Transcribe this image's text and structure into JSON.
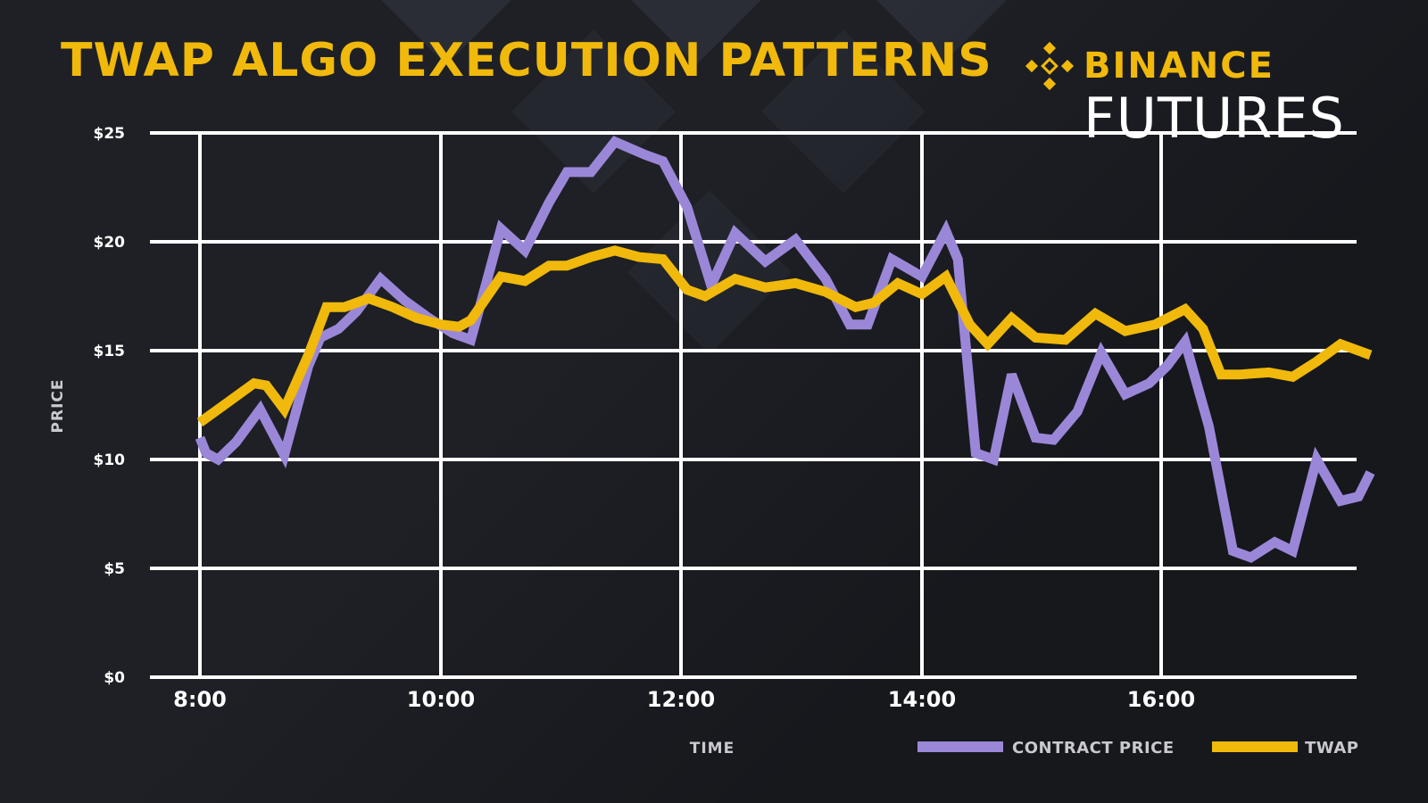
{
  "header": {
    "title": "TWAP ALGO EXECUTION PATTERNS",
    "brand": "BINANCE",
    "product": "FUTURES"
  },
  "logo_icon": "binance-diamond-icon",
  "colors": {
    "background": "#1e2026",
    "accent": "#f0b90b",
    "contract_price": "#9b87d8",
    "twap": "#f0b90b",
    "grid": "#ffffff"
  },
  "chart_data": {
    "type": "line",
    "title": "TWAP ALGO EXECUTION PATTERNS",
    "xlabel": "TIME",
    "ylabel": "PRICE",
    "ylim": [
      0,
      25
    ],
    "xlim": [
      8.0,
      17.75
    ],
    "grid": true,
    "legend_position": "bottom-right",
    "y_ticks": [
      {
        "value": 0,
        "label": "$0"
      },
      {
        "value": 5,
        "label": "$5"
      },
      {
        "value": 10,
        "label": "$10"
      },
      {
        "value": 15,
        "label": "$15"
      },
      {
        "value": 20,
        "label": "$20"
      },
      {
        "value": 25,
        "label": "$25"
      }
    ],
    "x_ticks": [
      {
        "value": 8,
        "label": "8:00"
      },
      {
        "value": 10,
        "label": "10:00"
      },
      {
        "value": 12,
        "label": "12:00"
      },
      {
        "value": 14,
        "label": "14:00"
      },
      {
        "value": 16,
        "label": "16:00"
      }
    ],
    "series": [
      {
        "name": "CONTRACT PRICE",
        "color": "#9b87d8",
        "x": [
          8.0,
          8.05,
          8.15,
          8.3,
          8.5,
          8.7,
          8.9,
          9.0,
          9.15,
          9.3,
          9.5,
          9.7,
          9.9,
          10.1,
          10.25,
          10.5,
          10.7,
          10.9,
          11.05,
          11.25,
          11.45,
          11.7,
          11.85,
          12.05,
          12.25,
          12.45,
          12.7,
          12.95,
          13.2,
          13.4,
          13.55,
          13.75,
          14.0,
          14.2,
          14.3,
          14.45,
          14.6,
          14.75,
          14.95,
          15.1,
          15.3,
          15.5,
          15.7,
          15.9,
          16.05,
          16.2,
          16.4,
          16.6,
          16.75,
          16.95,
          17.1,
          17.3,
          17.5,
          17.65,
          17.75
        ],
        "y": [
          11.0,
          10.3,
          10.0,
          10.8,
          12.3,
          10.2,
          14.3,
          15.6,
          16.0,
          16.8,
          18.3,
          17.3,
          16.5,
          15.8,
          15.5,
          20.6,
          19.6,
          21.8,
          23.2,
          23.2,
          24.6,
          24.0,
          23.7,
          21.6,
          18.0,
          20.4,
          19.1,
          20.1,
          18.3,
          16.2,
          16.2,
          19.2,
          18.4,
          20.5,
          19.2,
          10.3,
          10.0,
          13.9,
          11.0,
          10.9,
          12.2,
          14.9,
          13.0,
          13.5,
          14.3,
          15.4,
          11.5,
          5.8,
          5.5,
          6.2,
          5.8,
          10.0,
          8.1,
          8.3,
          9.4
        ]
      },
      {
        "name": "TWAP",
        "color": "#f0b90b",
        "x": [
          8.0,
          8.2,
          8.45,
          8.55,
          8.7,
          8.9,
          9.05,
          9.2,
          9.4,
          9.6,
          9.8,
          10.0,
          10.15,
          10.25,
          10.5,
          10.7,
          10.9,
          11.05,
          11.25,
          11.45,
          11.65,
          11.85,
          12.05,
          12.2,
          12.45,
          12.7,
          12.95,
          13.2,
          13.45,
          13.6,
          13.8,
          14.0,
          14.2,
          14.4,
          14.55,
          14.75,
          14.95,
          15.2,
          15.45,
          15.7,
          15.95,
          16.2,
          16.35,
          16.5,
          16.65,
          16.9,
          17.1,
          17.3,
          17.5,
          17.75
        ],
        "y": [
          11.7,
          12.5,
          13.5,
          13.4,
          12.3,
          14.8,
          17.0,
          17.0,
          17.4,
          17.0,
          16.5,
          16.2,
          16.1,
          16.4,
          18.4,
          18.2,
          18.9,
          18.9,
          19.3,
          19.6,
          19.3,
          19.2,
          17.8,
          17.5,
          18.3,
          17.9,
          18.1,
          17.7,
          17.0,
          17.2,
          18.1,
          17.6,
          18.4,
          16.2,
          15.3,
          16.5,
          15.6,
          15.5,
          16.7,
          15.9,
          16.2,
          16.9,
          16.0,
          13.9,
          13.9,
          14.0,
          13.8,
          14.5,
          15.3,
          14.8
        ]
      }
    ]
  }
}
